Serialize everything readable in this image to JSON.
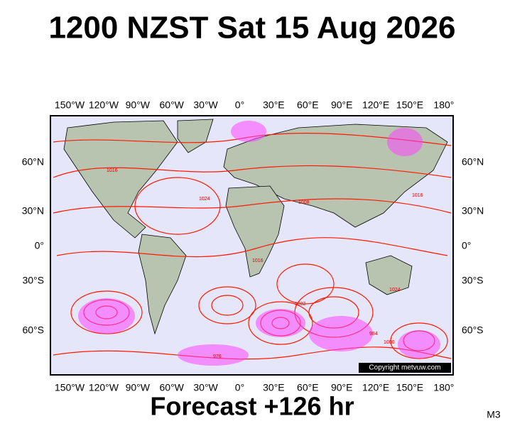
{
  "title": "1200 NZST Sat 15 Aug 2026",
  "top_axis_labels": [
    "150°W",
    "120°W",
    "90°W",
    "60°W",
    "30°W",
    "0°",
    "30°E",
    "60°E",
    "90°E",
    "120°E",
    "150°E",
    "180°"
  ],
  "bottom_axis_labels": [
    "150°W",
    "120°W",
    "90°W",
    "60°W",
    "30°W",
    "0°",
    "30°E",
    "60°E",
    "90°E",
    "120°E",
    "150°E",
    "180°"
  ],
  "left_axis_labels": [
    "60°N",
    "30°N",
    "0°",
    "30°S",
    "60°S"
  ],
  "right_axis_labels": [
    "60°N",
    "30°N",
    "0°",
    "30°S",
    "60°S"
  ],
  "isobar_labels": [
    "1016",
    "1024",
    "1008",
    "1016",
    "1032",
    "976",
    "984",
    "1000",
    "1024",
    "1016"
  ],
  "copyright": "Copyright metvuw.com",
  "footer": "Forecast +126 hr",
  "model_code": "M3"
}
